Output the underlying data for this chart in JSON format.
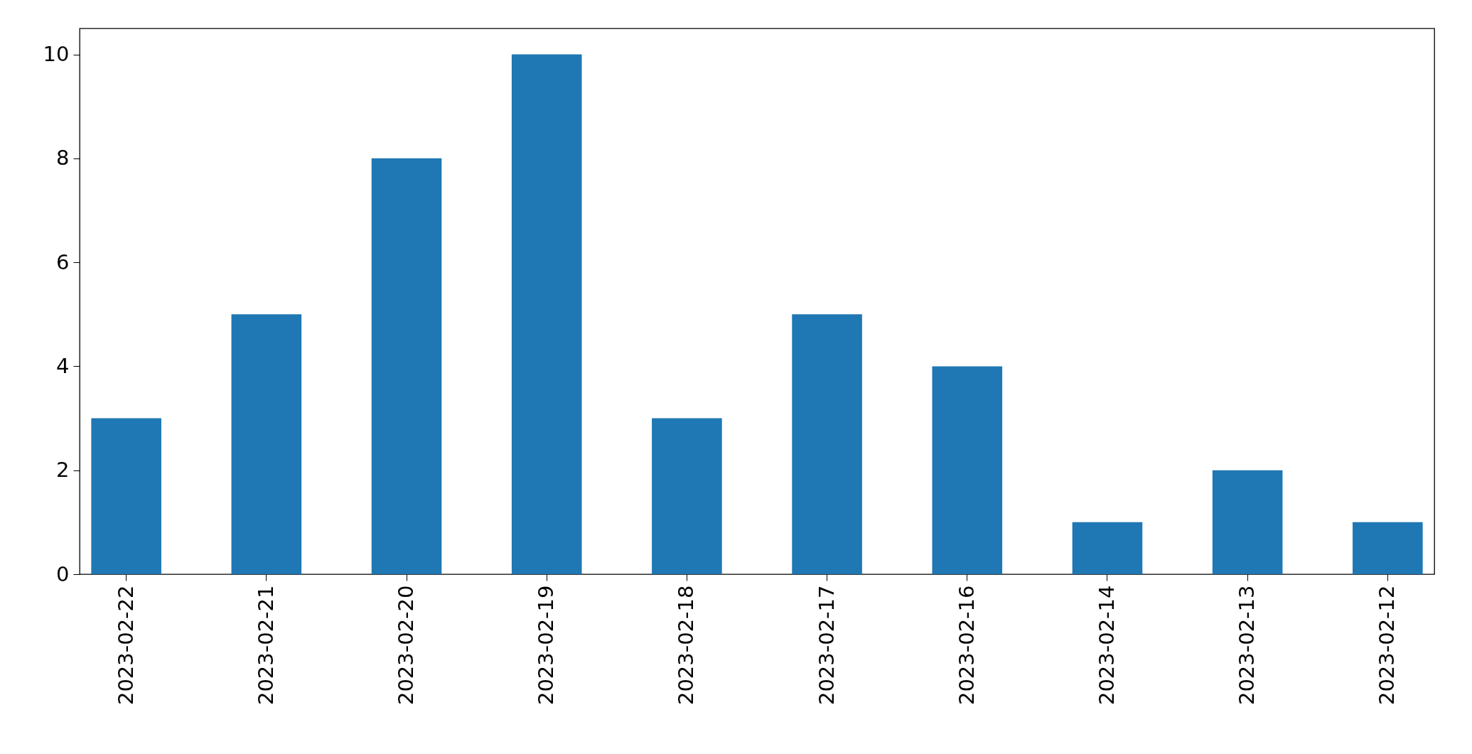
{
  "chart_data": {
    "type": "bar",
    "categories": [
      "2023-02-22",
      "2023-02-21",
      "2023-02-20",
      "2023-02-19",
      "2023-02-18",
      "2023-02-17",
      "2023-02-16",
      "2023-02-14",
      "2023-02-13",
      "2023-02-12"
    ],
    "values": [
      3,
      5,
      8,
      10,
      3,
      5,
      4,
      1,
      2,
      1
    ],
    "color": "#1f77b4",
    "ylim": [
      0,
      10.5
    ],
    "yticks": [
      0,
      2,
      4,
      6,
      8,
      10
    ],
    "grid": false
  }
}
